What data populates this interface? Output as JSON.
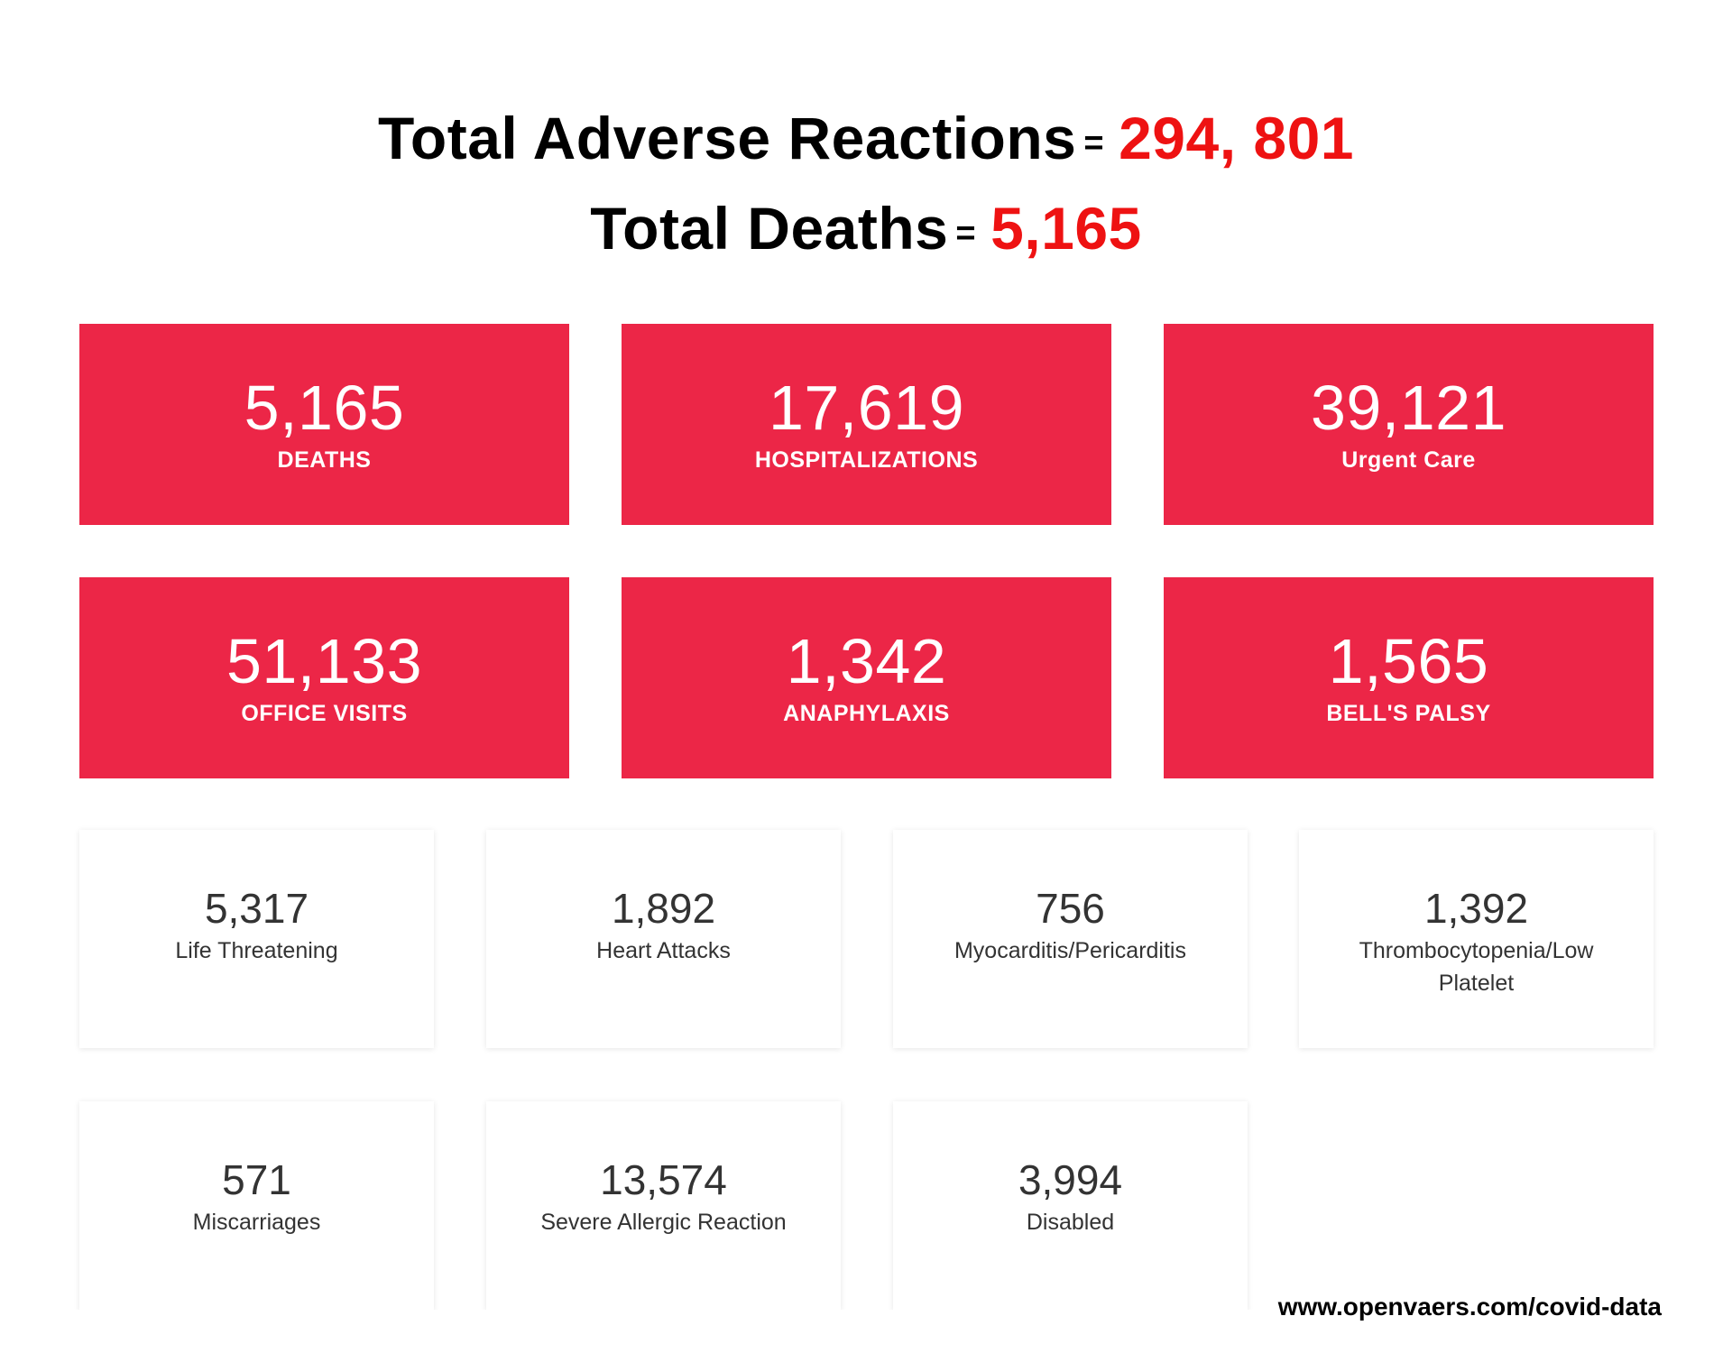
{
  "headline": {
    "reactions_label": "Total Adverse Reactions",
    "reactions_eq": "=",
    "reactions_value": "294, 801",
    "deaths_label": "Total Deaths",
    "deaths_eq": "=",
    "deaths_value": "5,165"
  },
  "red_cards": [
    {
      "value": "5,165",
      "label": "DEATHS"
    },
    {
      "value": "17,619",
      "label": "HOSPITALIZATIONS"
    },
    {
      "value": "39,121",
      "label": "Urgent Care"
    },
    {
      "value": "51,133",
      "label": "OFFICE VISITS"
    },
    {
      "value": "1,342",
      "label": "ANAPHYLAXIS"
    },
    {
      "value": "1,565",
      "label": "BELL'S PALSY"
    }
  ],
  "white_cards": [
    {
      "value": "5,317",
      "label": "Life Threatening"
    },
    {
      "value": "1,892",
      "label": "Heart Attacks"
    },
    {
      "value": "756",
      "label": "Myocarditis/Pericarditis"
    },
    {
      "value": "1,392",
      "label": "Thrombocytopenia/Low Platelet"
    },
    {
      "value": "571",
      "label": "Miscarriages"
    },
    {
      "value": "13,574",
      "label": "Severe Allergic Reaction"
    },
    {
      "value": "3,994",
      "label": "Disabled"
    }
  ],
  "footer": {
    "url": "www.openvaers.com/covid-data"
  },
  "colors": {
    "card_red": "#ec2647",
    "highlight_red": "#ee1212"
  }
}
